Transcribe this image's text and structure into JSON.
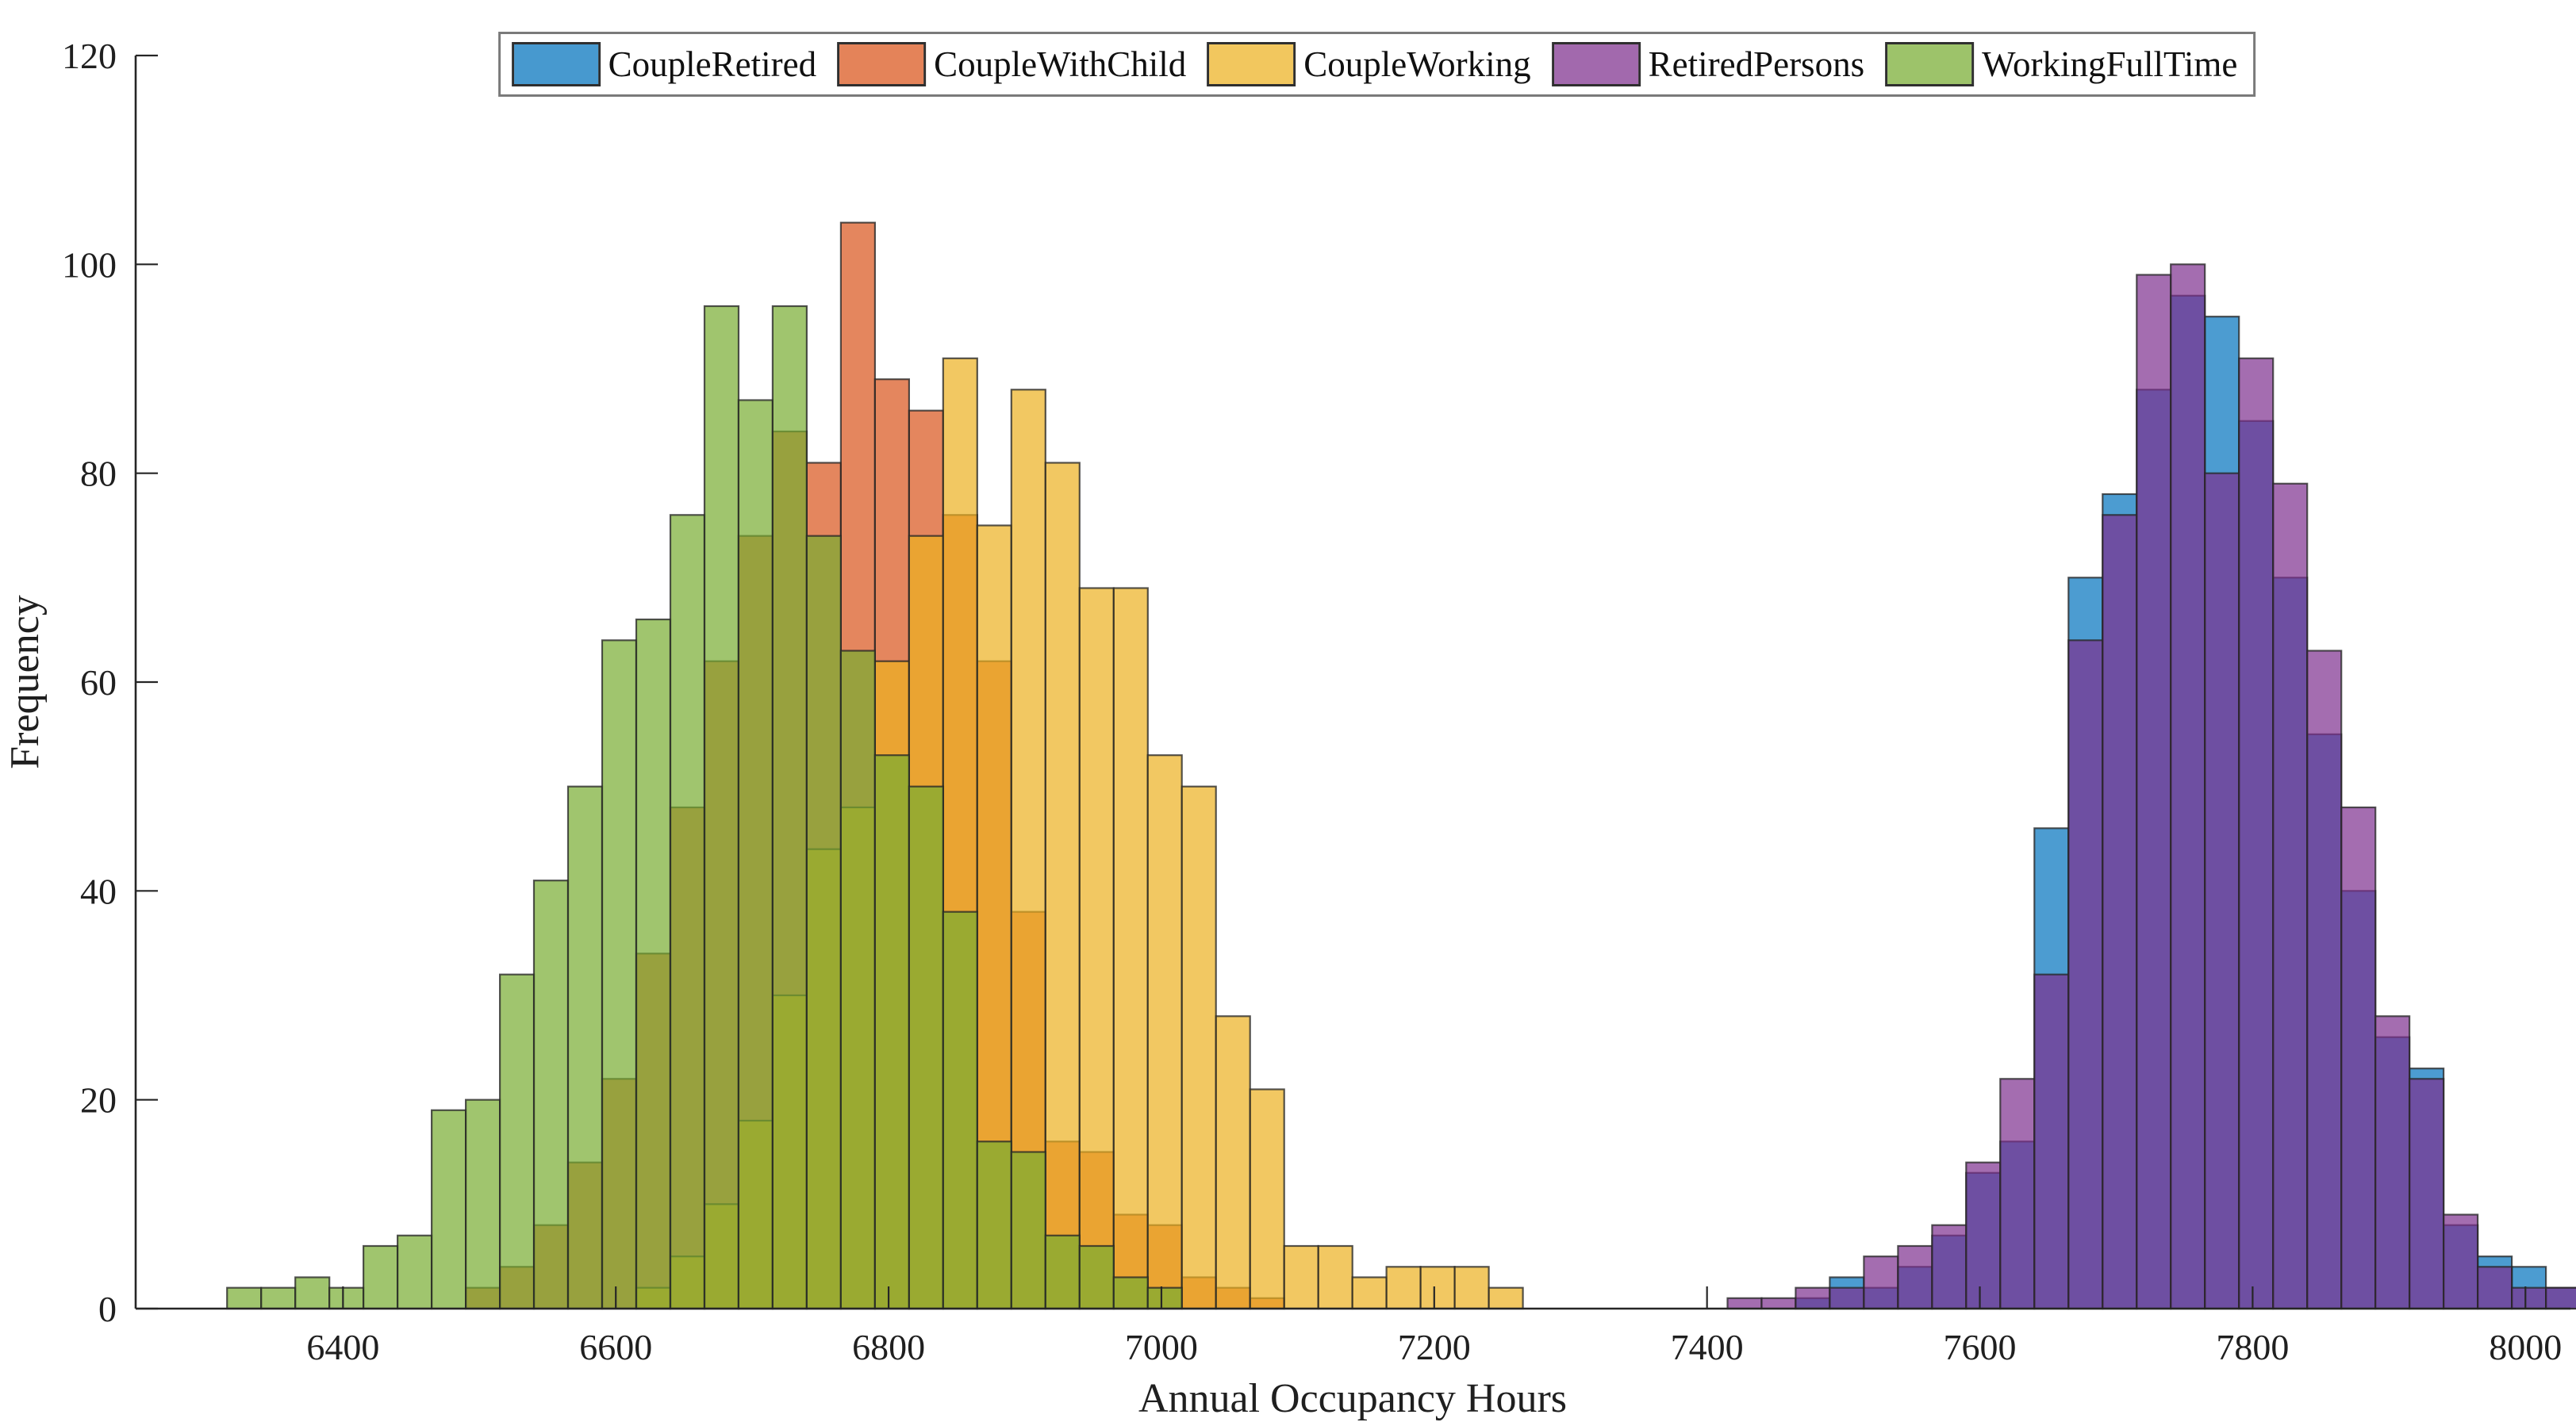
{
  "chart_data": {
    "type": "bar",
    "subtype": "overlaid-histograms",
    "title": "",
    "xlabel": "Annual Occupancy Hours",
    "ylabel": "Frequency",
    "xlim": [
      6248,
      8033
    ],
    "ylim": [
      0,
      120
    ],
    "x_ticks": [
      6400,
      6600,
      6800,
      7000,
      7200,
      7400,
      7600,
      7800,
      8000
    ],
    "y_ticks": [
      0,
      20,
      40,
      60,
      80,
      100,
      120
    ],
    "grid": false,
    "legend_position": "top-center",
    "bin_width": 25,
    "face_alpha": 0.7,
    "edge_color": "#262626",
    "background_color": "#ffffff",
    "series": [
      {
        "name": "CoupleRetired",
        "color": "#0072BD",
        "bin_start": 7465,
        "counts": [
          1,
          3,
          2,
          4,
          7,
          13,
          16,
          46,
          70,
          78,
          88,
          97,
          95,
          85,
          70,
          55,
          40,
          26,
          23,
          8,
          5,
          4,
          2
        ]
      },
      {
        "name": "CoupleWithChild",
        "color": "#D95319",
        "bin_start": 6490,
        "counts": [
          2,
          4,
          8,
          14,
          22,
          34,
          48,
          62,
          74,
          84,
          81,
          104,
          89,
          86,
          76,
          62,
          38,
          16,
          15,
          9,
          8,
          3,
          2,
          1
        ]
      },
      {
        "name": "CoupleWorking",
        "color": "#EDB120",
        "bin_start": 6615,
        "counts": [
          2,
          5,
          10,
          18,
          30,
          44,
          48,
          62,
          74,
          91,
          75,
          88,
          81,
          69,
          69,
          53,
          50,
          28,
          21,
          6,
          6,
          3,
          4,
          4,
          4,
          2
        ]
      },
      {
        "name": "RetiredPersons",
        "color": "#7E2F8E",
        "bin_start": 7415,
        "counts": [
          1,
          1,
          2,
          2,
          5,
          6,
          8,
          14,
          22,
          32,
          64,
          76,
          99,
          100,
          80,
          91,
          79,
          63,
          48,
          28,
          22,
          9,
          4,
          2,
          2
        ]
      },
      {
        "name": "WorkingFullTime",
        "color": "#77AC30",
        "bin_start": 6315,
        "counts": [
          2,
          2,
          3,
          2,
          6,
          7,
          19,
          20,
          32,
          41,
          50,
          64,
          66,
          76,
          96,
          87,
          96,
          74,
          63,
          53,
          50,
          38,
          16,
          15,
          7,
          6,
          3,
          2
        ]
      }
    ]
  }
}
